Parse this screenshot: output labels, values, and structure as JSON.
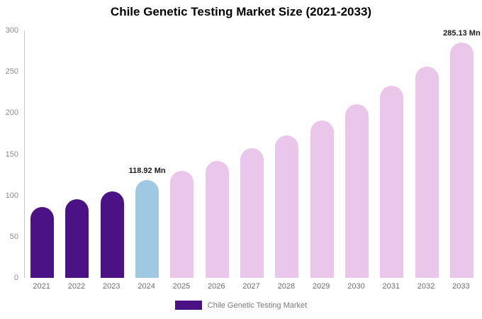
{
  "title": "Chile Genetic Testing Market Size (2021-2033)",
  "legend": {
    "label": "Chile Genetic Testing Market",
    "swatch_color": "#4b1285"
  },
  "colors": {
    "historical": "#4b1285",
    "current_year": "#9fc9e3",
    "forecast": "#e9c6ea",
    "axis_line": "#c8c8c8"
  },
  "chart_data": {
    "type": "bar",
    "title": "Chile Genetic Testing Market Size (2021-2033)",
    "xlabel": "",
    "ylabel": "",
    "categories": [
      "2021",
      "2022",
      "2023",
      "2024",
      "2025",
      "2026",
      "2027",
      "2028",
      "2029",
      "2030",
      "2031",
      "2032",
      "2033"
    ],
    "values": [
      86,
      95,
      105,
      118.92,
      130,
      142,
      157,
      173,
      191,
      211,
      233,
      256,
      285.13
    ],
    "bar_colors": [
      "#4b1285",
      "#4b1285",
      "#4b1285",
      "#9fc9e3",
      "#e9c6ea",
      "#e9c6ea",
      "#e9c6ea",
      "#e9c6ea",
      "#e9c6ea",
      "#e9c6ea",
      "#e9c6ea",
      "#e9c6ea",
      "#e9c6ea"
    ],
    "yticks": [
      0,
      50,
      100,
      150,
      200,
      250,
      300
    ],
    "ylim": [
      0,
      300
    ],
    "grid": false,
    "legend_position": "bottom",
    "legend_entries": [
      "Chile Genetic Testing Market"
    ],
    "annotations": [
      {
        "index": 3,
        "text": "118.92 Mn"
      },
      {
        "index": 12,
        "text": "285.13 Mn"
      }
    ]
  }
}
